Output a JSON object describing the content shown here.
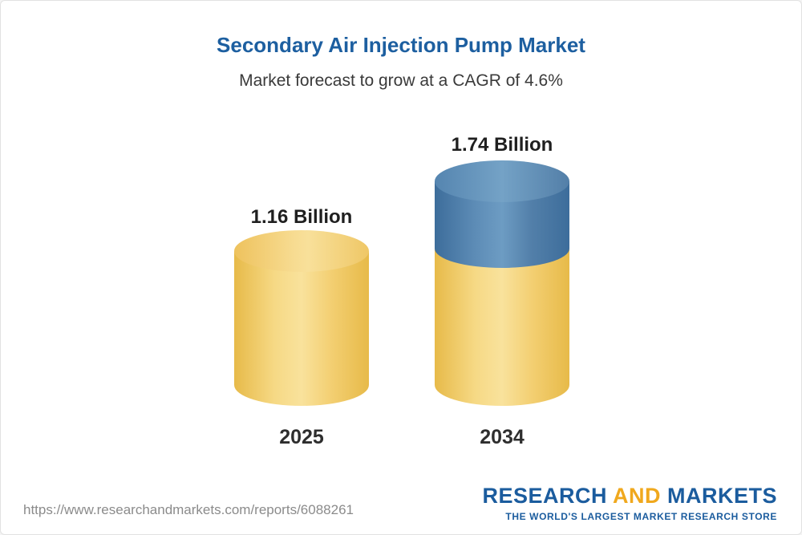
{
  "header": {
    "title": "Secondary Air Injection Pump Market",
    "subtitle": "Market forecast to grow at a CAGR of 4.6%"
  },
  "chart_data": {
    "type": "bar",
    "variant": "3d-cylinder",
    "title": "Secondary Air Injection Pump Market",
    "subtitle": "Market forecast to grow at a CAGR of 4.6%",
    "cagr_percent": 4.6,
    "categories": [
      "2025",
      "2034"
    ],
    "values": [
      1.16,
      1.74
    ],
    "value_labels": [
      "1.16 Billion",
      "1.74 Billion"
    ],
    "xlabel": "",
    "ylabel": "",
    "legend": "none",
    "grid": false,
    "colors": {
      "base_segment": "#f2cb67",
      "growth_segment": "#4f81ad",
      "title_text": "#1d5fa0",
      "label_text": "#1f1f1f"
    },
    "notes": "2034 bar shows base (yellow) portion equal to 2025 value plus blue growth segment on top"
  },
  "footer": {
    "url": "https://www.researchandmarkets.com/reports/6088261",
    "logo": {
      "research": "RESEARCH",
      "and": "AND",
      "markets": "MARKETS",
      "tagline": "THE WORLD'S LARGEST MARKET RESEARCH STORE"
    }
  }
}
